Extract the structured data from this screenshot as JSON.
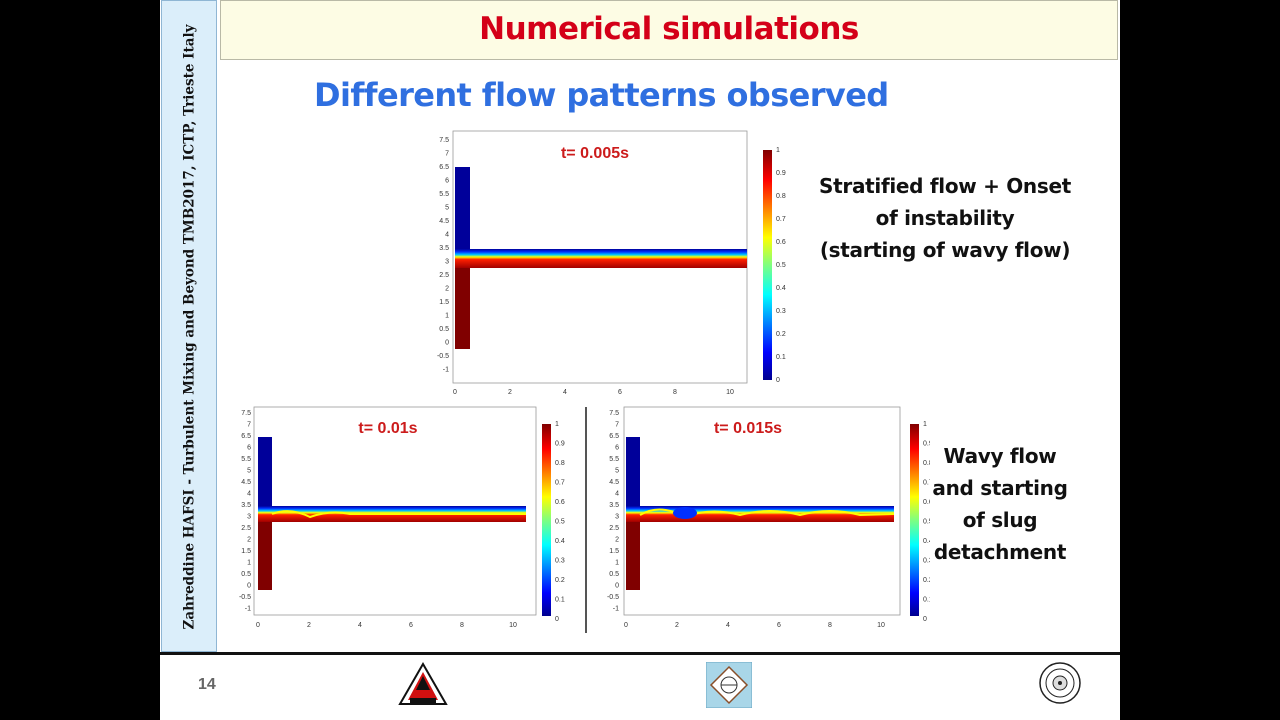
{
  "sidebar": {
    "text": "Zahreddine HAFSI - Turbulent Mixing and Beyond TMB2017, ICTP, Trieste Italy"
  },
  "header": {
    "title": "Numerical simulations"
  },
  "subtitle": "Different flow patterns observed",
  "colors": {
    "title": "#d40018",
    "subtitle": "#2f6fe0",
    "time_label": "#cc1b1b",
    "sidebar_bg": "#dbeefa",
    "title_bg": "#fdfce4"
  },
  "plots": [
    {
      "time_label": "t= 0.005s"
    },
    {
      "time_label": "t= 0.01s"
    },
    {
      "time_label": "t= 0.015s"
    }
  ],
  "axis": {
    "y_ticks": [
      "7.5",
      "7",
      "6.5",
      "6",
      "5.5",
      "5",
      "4.5",
      "4",
      "3.5",
      "3",
      "2.5",
      "2",
      "1.5",
      "1",
      "0.5",
      "0",
      "-0.5",
      "-1"
    ],
    "x_ticks": [
      "0",
      "2",
      "4",
      "6",
      "8",
      "10"
    ]
  },
  "colorbar": {
    "ticks": [
      "1",
      "0.9",
      "0.8",
      "0.7",
      "0.6",
      "0.5",
      "0.4",
      "0.3",
      "0.2",
      "0.1",
      "0"
    ]
  },
  "descriptions": {
    "first": [
      "Stratified flow + Onset",
      "of instability",
      "(starting of wavy flow)"
    ],
    "second": [
      "Wavy flow",
      "and starting",
      "of slug",
      "detachment"
    ]
  },
  "footer": {
    "page_number": "14"
  }
}
